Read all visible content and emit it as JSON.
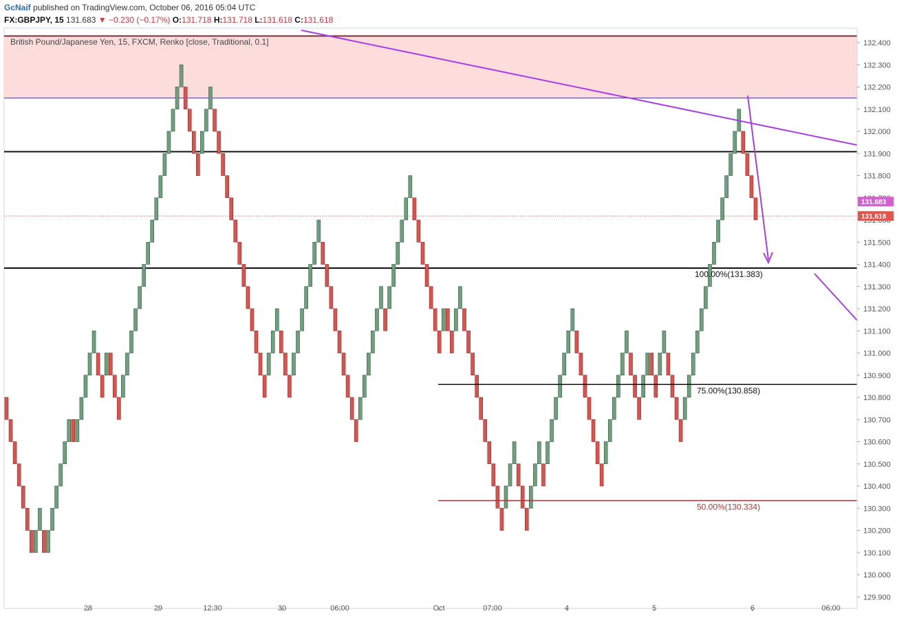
{
  "header": {
    "author": "GcNaif",
    "published_text": "published on TradingView.com, October 06, 2016 05:04 UTC",
    "symbol": "FX:GBPJPY, 15",
    "last": "131.683",
    "change": "▼ −0.230 (−0.17%)",
    "o_label": "O:",
    "o_value": "131.718",
    "h_label": "H:",
    "h_value": "131.718",
    "l_label": "L:",
    "l_value": "131.618",
    "c_label": "C:",
    "c_value": "131.618"
  },
  "colors": {
    "up": "#6f9f7d",
    "down": "#d9534f",
    "resistance_zone": "#fddcdc",
    "trendline": "#a63ee6",
    "last_tag": "#d65fd0",
    "close_tag": "#e0584c"
  },
  "chart_data": {
    "type": "renko",
    "title": "British Pound/Japanese Yen, 15, FXCM, Renko [close, Traditional, 0.1]",
    "box_size": 0.1,
    "y_ticks": [
      "132.400",
      "132.300",
      "132.200",
      "132.100",
      "132.000",
      "131.900",
      "131.800",
      "131.700",
      "131.600",
      "131.500",
      "131.400",
      "131.300",
      "131.200",
      "131.100",
      "131.000",
      "130.900",
      "130.800",
      "130.700",
      "130.600",
      "130.500",
      "130.400",
      "130.300",
      "130.200",
      "130.100",
      "130.000",
      "129.900"
    ],
    "x_labels": [
      "28",
      "29",
      "12:30",
      "30",
      "06:00",
      "Oct",
      "07:00",
      "4",
      "5",
      "6",
      "06:00"
    ],
    "ylim": [
      129.9,
      132.45
    ],
    "bricks": [
      {
        "o": 130.8,
        "c": 130.7
      },
      {
        "o": 130.7,
        "c": 130.6
      },
      {
        "o": 130.6,
        "c": 130.5
      },
      {
        "o": 130.5,
        "c": 130.4
      },
      {
        "o": 130.4,
        "c": 130.3
      },
      {
        "o": 130.3,
        "c": 130.2
      },
      {
        "o": 130.2,
        "c": 130.1
      },
      {
        "o": 130.1,
        "c": 130.2
      },
      {
        "o": 130.2,
        "c": 130.3
      },
      {
        "o": 130.2,
        "c": 130.1
      },
      {
        "o": 130.1,
        "c": 130.2
      },
      {
        "o": 130.2,
        "c": 130.3
      },
      {
        "o": 130.3,
        "c": 130.4
      },
      {
        "o": 130.4,
        "c": 130.5
      },
      {
        "o": 130.5,
        "c": 130.6
      },
      {
        "o": 130.6,
        "c": 130.7
      },
      {
        "o": 130.7,
        "c": 130.6
      },
      {
        "o": 130.6,
        "c": 130.7
      },
      {
        "o": 130.7,
        "c": 130.8
      },
      {
        "o": 130.8,
        "c": 130.9
      },
      {
        "o": 130.9,
        "c": 131.0
      },
      {
        "o": 131.0,
        "c": 131.1
      },
      {
        "o": 131.0,
        "c": 130.9
      },
      {
        "o": 130.9,
        "c": 130.8
      },
      {
        "o": 130.9,
        "c": 131.0
      },
      {
        "o": 131.0,
        "c": 130.9
      },
      {
        "o": 130.9,
        "c": 130.8
      },
      {
        "o": 130.8,
        "c": 130.7
      },
      {
        "o": 130.8,
        "c": 130.9
      },
      {
        "o": 130.9,
        "c": 131.0
      },
      {
        "o": 131.0,
        "c": 131.1
      },
      {
        "o": 131.1,
        "c": 131.2
      },
      {
        "o": 131.2,
        "c": 131.3
      },
      {
        "o": 131.3,
        "c": 131.4
      },
      {
        "o": 131.4,
        "c": 131.5
      },
      {
        "o": 131.5,
        "c": 131.6
      },
      {
        "o": 131.6,
        "c": 131.7
      },
      {
        "o": 131.7,
        "c": 131.8
      },
      {
        "o": 131.8,
        "c": 131.9
      },
      {
        "o": 131.9,
        "c": 132.0
      },
      {
        "o": 132.0,
        "c": 132.1
      },
      {
        "o": 132.1,
        "c": 132.2
      },
      {
        "o": 132.2,
        "c": 132.3
      },
      {
        "o": 132.2,
        "c": 132.1
      },
      {
        "o": 132.1,
        "c": 132.0
      },
      {
        "o": 132.0,
        "c": 131.9
      },
      {
        "o": 131.9,
        "c": 131.8
      },
      {
        "o": 131.9,
        "c": 132.0
      },
      {
        "o": 132.0,
        "c": 132.1
      },
      {
        "o": 132.1,
        "c": 132.2
      },
      {
        "o": 132.1,
        "c": 132.0
      },
      {
        "o": 132.0,
        "c": 131.9
      },
      {
        "o": 131.9,
        "c": 131.8
      },
      {
        "o": 131.8,
        "c": 131.7
      },
      {
        "o": 131.7,
        "c": 131.6
      },
      {
        "o": 131.6,
        "c": 131.5
      },
      {
        "o": 131.5,
        "c": 131.4
      },
      {
        "o": 131.4,
        "c": 131.3
      },
      {
        "o": 131.3,
        "c": 131.2
      },
      {
        "o": 131.2,
        "c": 131.1
      },
      {
        "o": 131.1,
        "c": 131.0
      },
      {
        "o": 131.0,
        "c": 130.9
      },
      {
        "o": 130.9,
        "c": 130.8
      },
      {
        "o": 130.9,
        "c": 131.0
      },
      {
        "o": 131.0,
        "c": 131.1
      },
      {
        "o": 131.1,
        "c": 131.2
      },
      {
        "o": 131.1,
        "c": 131.0
      },
      {
        "o": 131.0,
        "c": 130.9
      },
      {
        "o": 130.9,
        "c": 130.8
      },
      {
        "o": 130.9,
        "c": 131.0
      },
      {
        "o": 131.0,
        "c": 131.1
      },
      {
        "o": 131.1,
        "c": 131.2
      },
      {
        "o": 131.2,
        "c": 131.3
      },
      {
        "o": 131.3,
        "c": 131.4
      },
      {
        "o": 131.4,
        "c": 131.5
      },
      {
        "o": 131.5,
        "c": 131.6
      },
      {
        "o": 131.5,
        "c": 131.4
      },
      {
        "o": 131.4,
        "c": 131.3
      },
      {
        "o": 131.3,
        "c": 131.2
      },
      {
        "o": 131.2,
        "c": 131.1
      },
      {
        "o": 131.1,
        "c": 131.0
      },
      {
        "o": 131.0,
        "c": 130.9
      },
      {
        "o": 130.9,
        "c": 130.8
      },
      {
        "o": 130.8,
        "c": 130.7
      },
      {
        "o": 130.7,
        "c": 130.6
      },
      {
        "o": 130.7,
        "c": 130.8
      },
      {
        "o": 130.8,
        "c": 130.9
      },
      {
        "o": 130.9,
        "c": 131.0
      },
      {
        "o": 131.0,
        "c": 131.1
      },
      {
        "o": 131.1,
        "c": 131.2
      },
      {
        "o": 131.2,
        "c": 131.3
      },
      {
        "o": 131.2,
        "c": 131.1
      },
      {
        "o": 131.2,
        "c": 131.3
      },
      {
        "o": 131.3,
        "c": 131.4
      },
      {
        "o": 131.4,
        "c": 131.5
      },
      {
        "o": 131.5,
        "c": 131.6
      },
      {
        "o": 131.6,
        "c": 131.7
      },
      {
        "o": 131.7,
        "c": 131.8
      },
      {
        "o": 131.7,
        "c": 131.6
      },
      {
        "o": 131.6,
        "c": 131.5
      },
      {
        "o": 131.5,
        "c": 131.4
      },
      {
        "o": 131.4,
        "c": 131.3
      },
      {
        "o": 131.3,
        "c": 131.2
      },
      {
        "o": 131.2,
        "c": 131.1
      },
      {
        "o": 131.1,
        "c": 131.0
      },
      {
        "o": 131.1,
        "c": 131.2
      },
      {
        "o": 131.2,
        "c": 131.1
      },
      {
        "o": 131.1,
        "c": 131.0
      },
      {
        "o": 131.1,
        "c": 131.2
      },
      {
        "o": 131.2,
        "c": 131.3
      },
      {
        "o": 131.2,
        "c": 131.1
      },
      {
        "o": 131.1,
        "c": 131.0
      },
      {
        "o": 131.0,
        "c": 130.9
      },
      {
        "o": 130.9,
        "c": 130.8
      },
      {
        "o": 130.8,
        "c": 130.7
      },
      {
        "o": 130.7,
        "c": 130.6
      },
      {
        "o": 130.6,
        "c": 130.5
      },
      {
        "o": 130.5,
        "c": 130.4
      },
      {
        "o": 130.4,
        "c": 130.3
      },
      {
        "o": 130.3,
        "c": 130.2
      },
      {
        "o": 130.3,
        "c": 130.4
      },
      {
        "o": 130.4,
        "c": 130.5
      },
      {
        "o": 130.5,
        "c": 130.6
      },
      {
        "o": 130.5,
        "c": 130.4
      },
      {
        "o": 130.4,
        "c": 130.3
      },
      {
        "o": 130.3,
        "c": 130.2
      },
      {
        "o": 130.3,
        "c": 130.4
      },
      {
        "o": 130.4,
        "c": 130.5
      },
      {
        "o": 130.5,
        "c": 130.6
      },
      {
        "o": 130.5,
        "c": 130.4
      },
      {
        "o": 130.5,
        "c": 130.6
      },
      {
        "o": 130.6,
        "c": 130.7
      },
      {
        "o": 130.7,
        "c": 130.8
      },
      {
        "o": 130.8,
        "c": 130.9
      },
      {
        "o": 130.9,
        "c": 131.0
      },
      {
        "o": 131.0,
        "c": 131.1
      },
      {
        "o": 131.1,
        "c": 131.2
      },
      {
        "o": 131.1,
        "c": 131.0
      },
      {
        "o": 131.0,
        "c": 130.9
      },
      {
        "o": 130.9,
        "c": 130.8
      },
      {
        "o": 130.8,
        "c": 130.7
      },
      {
        "o": 130.7,
        "c": 130.6
      },
      {
        "o": 130.6,
        "c": 130.5
      },
      {
        "o": 130.5,
        "c": 130.4
      },
      {
        "o": 130.5,
        "c": 130.6
      },
      {
        "o": 130.6,
        "c": 130.7
      },
      {
        "o": 130.7,
        "c": 130.8
      },
      {
        "o": 130.8,
        "c": 130.9
      },
      {
        "o": 130.9,
        "c": 131.0
      },
      {
        "o": 131.0,
        "c": 131.1
      },
      {
        "o": 131.0,
        "c": 130.9
      },
      {
        "o": 130.9,
        "c": 130.8
      },
      {
        "o": 130.8,
        "c": 130.7
      },
      {
        "o": 130.8,
        "c": 130.9
      },
      {
        "o": 130.9,
        "c": 131.0
      },
      {
        "o": 131.0,
        "c": 130.9
      },
      {
        "o": 130.9,
        "c": 130.8
      },
      {
        "o": 130.9,
        "c": 131.0
      },
      {
        "o": 131.0,
        "c": 131.1
      },
      {
        "o": 131.0,
        "c": 130.9
      },
      {
        "o": 130.9,
        "c": 130.8
      },
      {
        "o": 130.8,
        "c": 130.7
      },
      {
        "o": 130.7,
        "c": 130.6
      },
      {
        "o": 130.7,
        "c": 130.8
      },
      {
        "o": 130.8,
        "c": 130.9
      },
      {
        "o": 130.9,
        "c": 131.0
      },
      {
        "o": 131.0,
        "c": 131.1
      },
      {
        "o": 131.1,
        "c": 131.2
      },
      {
        "o": 131.2,
        "c": 131.3
      },
      {
        "o": 131.3,
        "c": 131.4
      },
      {
        "o": 131.4,
        "c": 131.5
      },
      {
        "o": 131.5,
        "c": 131.6
      },
      {
        "o": 131.6,
        "c": 131.7
      },
      {
        "o": 131.7,
        "c": 131.8
      },
      {
        "o": 131.8,
        "c": 131.9
      },
      {
        "o": 131.9,
        "c": 132.0
      },
      {
        "o": 132.0,
        "c": 132.1
      },
      {
        "o": 132.0,
        "c": 131.9
      },
      {
        "o": 131.9,
        "c": 131.8
      },
      {
        "o": 131.8,
        "c": 131.7
      },
      {
        "o": 131.7,
        "c": 131.6
      }
    ],
    "horizontal_levels": [
      {
        "value": 131.908,
        "color": "#111111"
      },
      {
        "value": 131.383,
        "color": "#111111"
      },
      {
        "value": 132.15,
        "color": "#3a3a8c"
      }
    ],
    "fib_levels": [
      {
        "label": "100.00%(131.383)",
        "value": 131.383,
        "color": "#111111"
      },
      {
        "label": "75.00%(130.858)",
        "value": 130.858,
        "color": "#111111"
      },
      {
        "label": "50.00%(130.334)",
        "value": 130.334,
        "color": "#a83a3a"
      }
    ],
    "resistance_zone": [
      132.15,
      132.43
    ],
    "last_price": {
      "label": "131.683",
      "value": 131.683
    },
    "close_price": {
      "label": "131.618",
      "value": 131.618
    }
  }
}
